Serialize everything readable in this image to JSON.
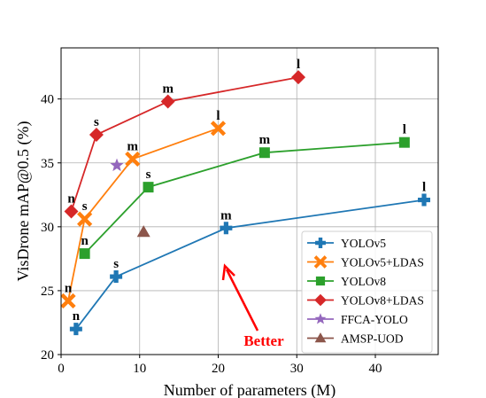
{
  "chart_data": {
    "type": "line",
    "xlabel": "Number of parameters (M)",
    "ylabel": "VisDrone mAP@0.5 (%)",
    "xlim": [
      0,
      48
    ],
    "ylim": [
      20,
      44
    ],
    "xticks": [
      0,
      10,
      20,
      30,
      40
    ],
    "yticks": [
      20,
      25,
      30,
      35,
      40
    ],
    "grid": true,
    "legend_position": "bottom-right",
    "series": [
      {
        "name": "YOLOv5",
        "color": "#1f77b4",
        "marker": "plus",
        "x": [
          1.9,
          7.0,
          21.0,
          46.2
        ],
        "y": [
          22.0,
          26.1,
          29.9,
          32.1
        ],
        "labels": [
          "n",
          "s",
          "m",
          "l"
        ]
      },
      {
        "name": "YOLOv5+LDAS",
        "color": "#ff7f0e",
        "marker": "x",
        "x": [
          0.9,
          3.0,
          9.1,
          20.0
        ],
        "y": [
          24.2,
          30.6,
          35.3,
          37.7
        ],
        "labels": [
          "n",
          "s",
          "m",
          "l"
        ]
      },
      {
        "name": "YOLOv8",
        "color": "#2ca02c",
        "marker": "square",
        "x": [
          3.0,
          11.1,
          25.9,
          43.7
        ],
        "y": [
          27.9,
          33.1,
          35.8,
          36.6
        ],
        "labels": [
          "n",
          "s",
          "m",
          "l"
        ]
      },
      {
        "name": "YOLOv8+LDAS",
        "color": "#d62728",
        "marker": "diamond",
        "x": [
          1.3,
          4.5,
          13.6,
          30.2
        ],
        "y": [
          31.2,
          37.2,
          39.8,
          41.7
        ],
        "labels": [
          "n",
          "s",
          "m",
          "l"
        ]
      },
      {
        "name": "FFCA-YOLO",
        "color": "#9467bd",
        "marker": "star",
        "x": [
          7.1
        ],
        "y": [
          34.8
        ],
        "labels": [
          ""
        ]
      },
      {
        "name": "AMSP-UOD",
        "color": "#8c564b",
        "marker": "triangle",
        "x": [
          10.5
        ],
        "y": [
          29.6
        ],
        "labels": [
          ""
        ]
      }
    ],
    "annotation": {
      "text": "Better",
      "color": "#ff0000"
    }
  }
}
